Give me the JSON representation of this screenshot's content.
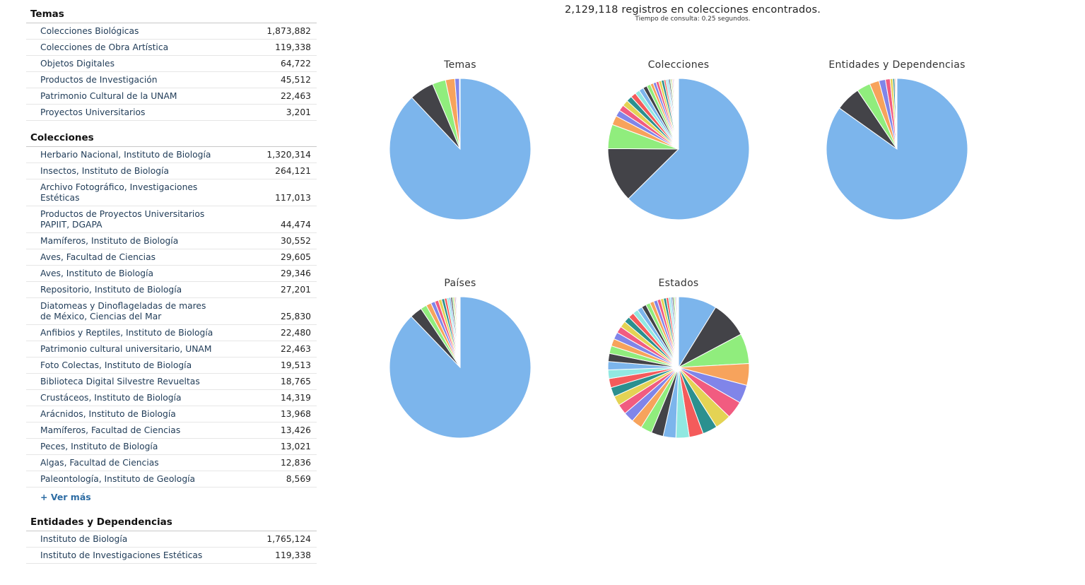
{
  "summary": {
    "records_text": "2,129,118 registros en colecciones encontrados.",
    "query_time_text": "Tiempo de consulta: 0.25 segundos."
  },
  "sidebar": {
    "temas": {
      "title": "Temas",
      "items": [
        {
          "label": "Colecciones Biológicas",
          "count": "1,873,882"
        },
        {
          "label": "Colecciones de Obra Artística",
          "count": "119,338"
        },
        {
          "label": "Objetos Digitales",
          "count": "64,722"
        },
        {
          "label": "Productos de Investigación",
          "count": "45,512"
        },
        {
          "label": "Patrimonio Cultural de la UNAM",
          "count": "22,463"
        },
        {
          "label": "Proyectos Universitarios",
          "count": "3,201"
        }
      ]
    },
    "colecciones": {
      "title": "Colecciones",
      "items": [
        {
          "label": "Herbario Nacional, Instituto de Biología",
          "count": "1,320,314"
        },
        {
          "label": "Insectos, Instituto de Biología",
          "count": "264,121"
        },
        {
          "label": "Archivo Fotográfico, Investigaciones Estéticas",
          "count": "117,013"
        },
        {
          "label": "Productos de Proyectos Universitarios PAPIIT, DGAPA",
          "count": "44,474"
        },
        {
          "label": "Mamíferos, Instituto de Biología",
          "count": "30,552"
        },
        {
          "label": "Aves, Facultad de Ciencias",
          "count": "29,605"
        },
        {
          "label": "Aves, Instituto de Biología",
          "count": "29,346"
        },
        {
          "label": "Repositorio, Instituto de Biología",
          "count": "27,201"
        },
        {
          "label": "Diatomeas y Dinoflageladas de mares de México, Ciencias del Mar",
          "count": "25,830"
        },
        {
          "label": "Anfibios y Reptiles, Instituto de Biología",
          "count": "22,480"
        },
        {
          "label": "Patrimonio cultural universitario, UNAM",
          "count": "22,463"
        },
        {
          "label": "Foto Colectas, Instituto de Biología",
          "count": "19,513"
        },
        {
          "label": "Biblioteca Digital Silvestre Revueltas",
          "count": "18,765"
        },
        {
          "label": "Crustáceos, Instituto de Biología",
          "count": "14,319"
        },
        {
          "label": "Arácnidos, Instituto de Biología",
          "count": "13,968"
        },
        {
          "label": "Mamíferos, Facultad de Ciencias",
          "count": "13,426"
        },
        {
          "label": "Peces, Instituto de Biología",
          "count": "13,021"
        },
        {
          "label": "Algas, Facultad de Ciencias",
          "count": "12,836"
        },
        {
          "label": "Paleontología, Instituto de Geología",
          "count": "8,569"
        }
      ],
      "more_label": "+ Ver más"
    },
    "entidades": {
      "title": "Entidades y Dependencias",
      "items": [
        {
          "label": "Instituto de Biología",
          "count": "1,765,124"
        },
        {
          "label": "Instituto de Investigaciones Estéticas",
          "count": "119,338"
        }
      ]
    }
  },
  "palette": [
    "#7cb5ec",
    "#434348",
    "#90ed7d",
    "#f7a35c",
    "#8085e9",
    "#f15c80",
    "#e4d354",
    "#2b908f",
    "#f45b5b",
    "#91e8e1"
  ],
  "chart_data": [
    {
      "type": "pie",
      "title": "Temas",
      "values": [
        1873882,
        119338,
        64722,
        45512,
        22463,
        3201
      ]
    },
    {
      "type": "pie",
      "title": "Colecciones",
      "values": [
        1320314,
        264121,
        117013,
        44474,
        30552,
        29605,
        29346,
        27201,
        25830,
        22480,
        22463,
        19513,
        18765,
        14319,
        13968,
        13426,
        13021,
        12836,
        8569,
        8000,
        7200,
        6500,
        5800,
        5100,
        4500,
        4000,
        3500,
        3100,
        2700,
        2300,
        2000,
        1700,
        1400,
        1200,
        1000,
        800,
        600,
        400
      ]
    },
    {
      "type": "pie",
      "title": "Entidades y Dependencias",
      "values": [
        1765124,
        119338,
        64722,
        45512,
        30552,
        22463,
        12836,
        8569,
        5000,
        3000,
        2000,
        1000
      ]
    },
    {
      "type": "pie",
      "title": "Países",
      "values": [
        1875000,
        60000,
        30000,
        25000,
        20000,
        18000,
        16000,
        14000,
        12000,
        10000,
        9000,
        8000,
        7000,
        6000,
        5000,
        4000,
        3500,
        3000,
        2500,
        2000,
        1500,
        1000,
        800,
        600,
        400,
        300,
        200
      ]
    },
    {
      "type": "pie",
      "title": "Estados",
      "values": [
        115,
        110,
        90,
        65,
        55,
        52,
        48,
        44,
        42,
        40,
        38,
        36,
        34,
        32,
        31,
        30,
        29,
        28,
        27,
        26,
        25,
        24,
        23,
        22,
        21,
        20,
        19,
        18,
        17,
        16,
        15,
        14,
        13,
        12,
        11,
        10,
        9,
        8,
        7,
        6,
        5,
        4,
        4,
        3,
        3,
        2,
        2,
        1
      ]
    }
  ]
}
